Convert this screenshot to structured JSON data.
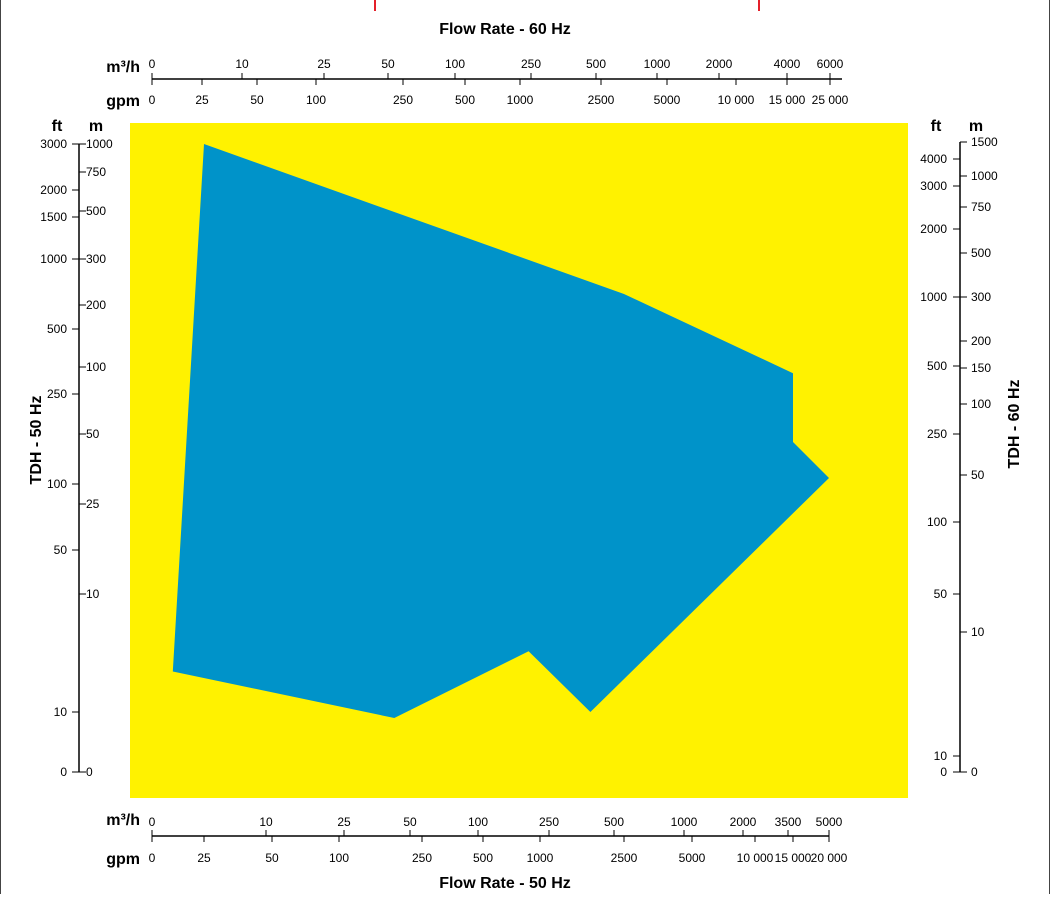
{
  "chart_data": {
    "type": "area",
    "title_top": "Flow Rate - 60 Hz",
    "title_bottom": "Flow Rate - 50 Hz",
    "ylabel_left": "TDH - 50 Hz",
    "ylabel_right": "TDH - 60 Hz",
    "colors": {
      "plot_background": "#FFF200",
      "coverage_area": "#0093C9",
      "accent": "#E4202A"
    },
    "top_axis": {
      "m3h_unit": "m³/h",
      "gpm_unit": "gpm",
      "m3h_ticks": [
        "0",
        "10",
        "25",
        "50",
        "100",
        "250",
        "500",
        "1000",
        "2000",
        "4000",
        "6000"
      ],
      "gpm_ticks": [
        "0",
        "25",
        "50",
        "100",
        "250",
        "500",
        "1000",
        "2500",
        "5000",
        "10 000",
        "15 000",
        "25 000"
      ]
    },
    "bottom_axis": {
      "m3h_unit": "m³/h",
      "gpm_unit": "gpm",
      "m3h_ticks": [
        "0",
        "10",
        "25",
        "50",
        "100",
        "250",
        "500",
        "1000",
        "2000",
        "3500",
        "5000"
      ],
      "gpm_ticks": [
        "0",
        "25",
        "50",
        "100",
        "250",
        "500",
        "1000",
        "2500",
        "5000",
        "10 000",
        "15 000",
        "20 000"
      ]
    },
    "left_axis": {
      "ft_unit": "ft",
      "m_unit": "m",
      "ft_ticks": [
        "3000",
        "2000",
        "1500",
        "1000",
        "500",
        "250",
        "100",
        "50",
        "10",
        "0"
      ],
      "m_ticks": [
        "1000",
        "750",
        "500",
        "300",
        "200",
        "100",
        "50",
        "25",
        "10",
        "0"
      ]
    },
    "right_axis": {
      "ft_unit": "ft",
      "m_unit": "m",
      "ft_ticks": [
        "4000",
        "3000",
        "2000",
        "1000",
        "500",
        "250",
        "100",
        "50",
        "10",
        "0"
      ],
      "m_ticks": [
        "1500",
        "1000",
        "750",
        "500",
        "300",
        "200",
        "150",
        "100",
        "50",
        "10",
        "0"
      ]
    },
    "coverage_boundary_50hz": {
      "x_unit": "gpm",
      "y_unit": "ft",
      "points": [
        {
          "x": 25,
          "y": 3000
        },
        {
          "x": 2500,
          "y": 750
        },
        {
          "x": 15000,
          "y": 330
        },
        {
          "x": 15000,
          "y": 170
        },
        {
          "x": 20000,
          "y": 110
        },
        {
          "x": 1900,
          "y": 10
        },
        {
          "x": 900,
          "y": 25
        },
        {
          "x": 200,
          "y": 9
        },
        {
          "x": 10,
          "y": 20
        }
      ]
    }
  }
}
